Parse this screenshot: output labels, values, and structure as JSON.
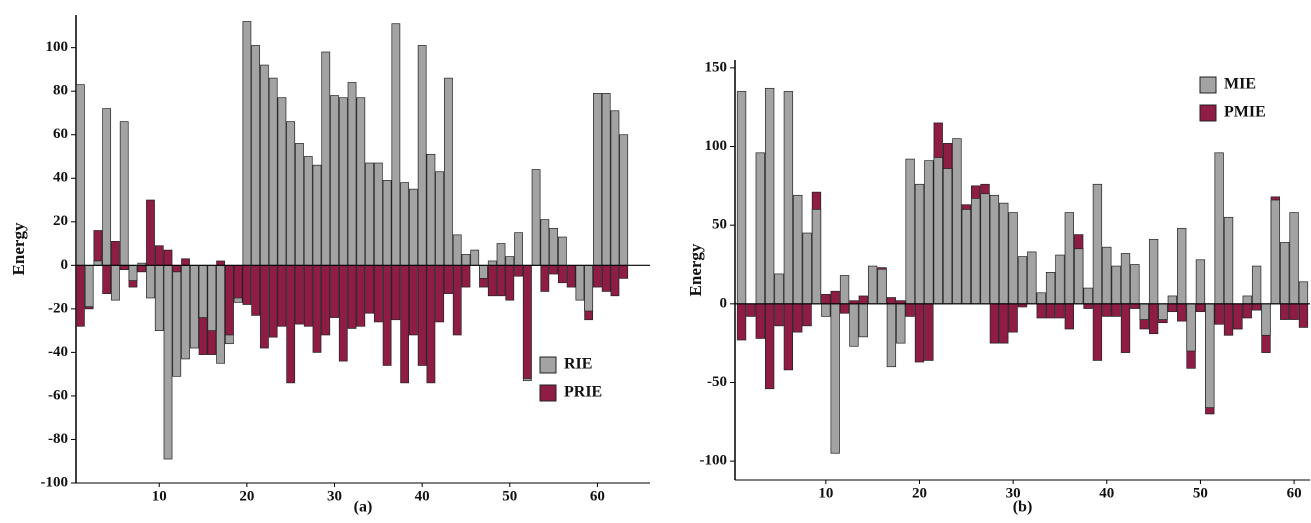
{
  "chart_data": [
    {
      "type": "bar",
      "ylabel": "Energy",
      "caption": "(a)",
      "legend": "lower right",
      "x": [
        1,
        2,
        3,
        4,
        5,
        6,
        7,
        8,
        9,
        10,
        11,
        12,
        13,
        14,
        15,
        16,
        17,
        18,
        19,
        20,
        21,
        22,
        23,
        24,
        25,
        26,
        27,
        28,
        29,
        30,
        31,
        32,
        33,
        34,
        35,
        36,
        37,
        38,
        39,
        40,
        41,
        42,
        43,
        44,
        45,
        46,
        47,
        48,
        49,
        50,
        51,
        52,
        53,
        54,
        55,
        56,
        57,
        58,
        59,
        60,
        61,
        62,
        63
      ],
      "xlim": [
        0.5,
        66
      ],
      "ylim": [
        -100,
        115
      ],
      "xticks": [
        10,
        20,
        30,
        40,
        50,
        60
      ],
      "yticks": [
        -100,
        -80,
        -60,
        -40,
        -20,
        0,
        20,
        40,
        60,
        80,
        100
      ],
      "series": [
        {
          "name": "RIE",
          "color": "#a3a3a3",
          "values": [
            83,
            -19,
            2,
            72,
            -16,
            66,
            -7,
            1,
            -15,
            -30,
            -89,
            -51,
            -43,
            -38,
            -24,
            -30,
            -45,
            -36,
            -17,
            112,
            101,
            92,
            86,
            77,
            66,
            56,
            50,
            46,
            98,
            78,
            77,
            84,
            77,
            47,
            47,
            39,
            111,
            38,
            35,
            101,
            51,
            43,
            86,
            14,
            5,
            7,
            -6,
            2,
            10,
            4,
            15,
            -53,
            44,
            21,
            17,
            13,
            0,
            -16,
            -21,
            79,
            79,
            71,
            60
          ]
        },
        {
          "name": "PRIE",
          "color": "#8e1c45",
          "values": [
            -28,
            -20,
            16,
            -13,
            11,
            -2,
            -10,
            -3,
            30,
            9,
            7,
            -3,
            3,
            0,
            -41,
            -41,
            2,
            -32,
            -15,
            -18,
            -23,
            -38,
            -33,
            -28,
            -54,
            -27,
            -28,
            -40,
            -32,
            -24,
            -44,
            -29,
            -28,
            -22,
            -26,
            -46,
            -25,
            -54,
            -32,
            -46,
            -54,
            -26,
            -13,
            -32,
            -10,
            0,
            -10,
            -14,
            -14,
            -16,
            -5,
            -52,
            0,
            -12,
            -4,
            -8,
            -10,
            0,
            -25,
            -10,
            -12,
            -14,
            -6
          ]
        }
      ]
    },
    {
      "type": "bar",
      "ylabel": "Energy",
      "caption": "(b)",
      "legend": "upper right",
      "x": [
        1,
        2,
        3,
        4,
        5,
        6,
        7,
        8,
        9,
        10,
        11,
        12,
        13,
        14,
        15,
        16,
        17,
        18,
        19,
        20,
        21,
        22,
        23,
        24,
        25,
        26,
        27,
        28,
        29,
        30,
        31,
        32,
        33,
        34,
        35,
        36,
        37,
        38,
        39,
        40,
        41,
        42,
        43,
        44,
        45,
        46,
        47,
        48,
        49,
        50,
        51,
        52,
        53,
        54,
        55,
        56,
        57,
        58,
        59,
        60,
        61
      ],
      "xlim": [
        0.3,
        61.7
      ],
      "ylim": [
        -112,
        155
      ],
      "xticks": [
        10,
        20,
        30,
        40,
        50,
        60
      ],
      "yticks": [
        -100,
        -50,
        0,
        50,
        100,
        150
      ],
      "series": [
        {
          "name": "MIE",
          "color": "#a3a3a3",
          "values": [
            135,
            0,
            96,
            137,
            19,
            135,
            69,
            45,
            60,
            -8,
            -95,
            18,
            -27,
            -21,
            24,
            22,
            -40,
            -25,
            92,
            76,
            91,
            93,
            86,
            105,
            60,
            67,
            70,
            69,
            64,
            58,
            30,
            33,
            7,
            20,
            31,
            58,
            35,
            10,
            76,
            36,
            24,
            32,
            25,
            -10,
            41,
            -10,
            5,
            48,
            -30,
            28,
            -66,
            96,
            55,
            -16,
            5,
            24,
            -20,
            66,
            39,
            58,
            14
          ]
        },
        {
          "name": "PMIE",
          "color": "#8e1c45",
          "values": [
            -23,
            -8,
            -22,
            -54,
            -14,
            -42,
            -18,
            -14,
            71,
            6,
            8,
            -6,
            2,
            5,
            0,
            23,
            4,
            2,
            -8,
            -37,
            -36,
            115,
            102,
            0,
            63,
            75,
            76,
            -25,
            -25,
            -18,
            -2,
            0,
            -9,
            -9,
            -9,
            -16,
            44,
            -3,
            -36,
            -8,
            -8,
            -31,
            -3,
            -16,
            -19,
            -12,
            -5,
            -11,
            -41,
            -5,
            -70,
            -13,
            -20,
            -16,
            -9,
            -4,
            -31,
            68,
            -10,
            -10,
            -15
          ]
        }
      ]
    }
  ]
}
